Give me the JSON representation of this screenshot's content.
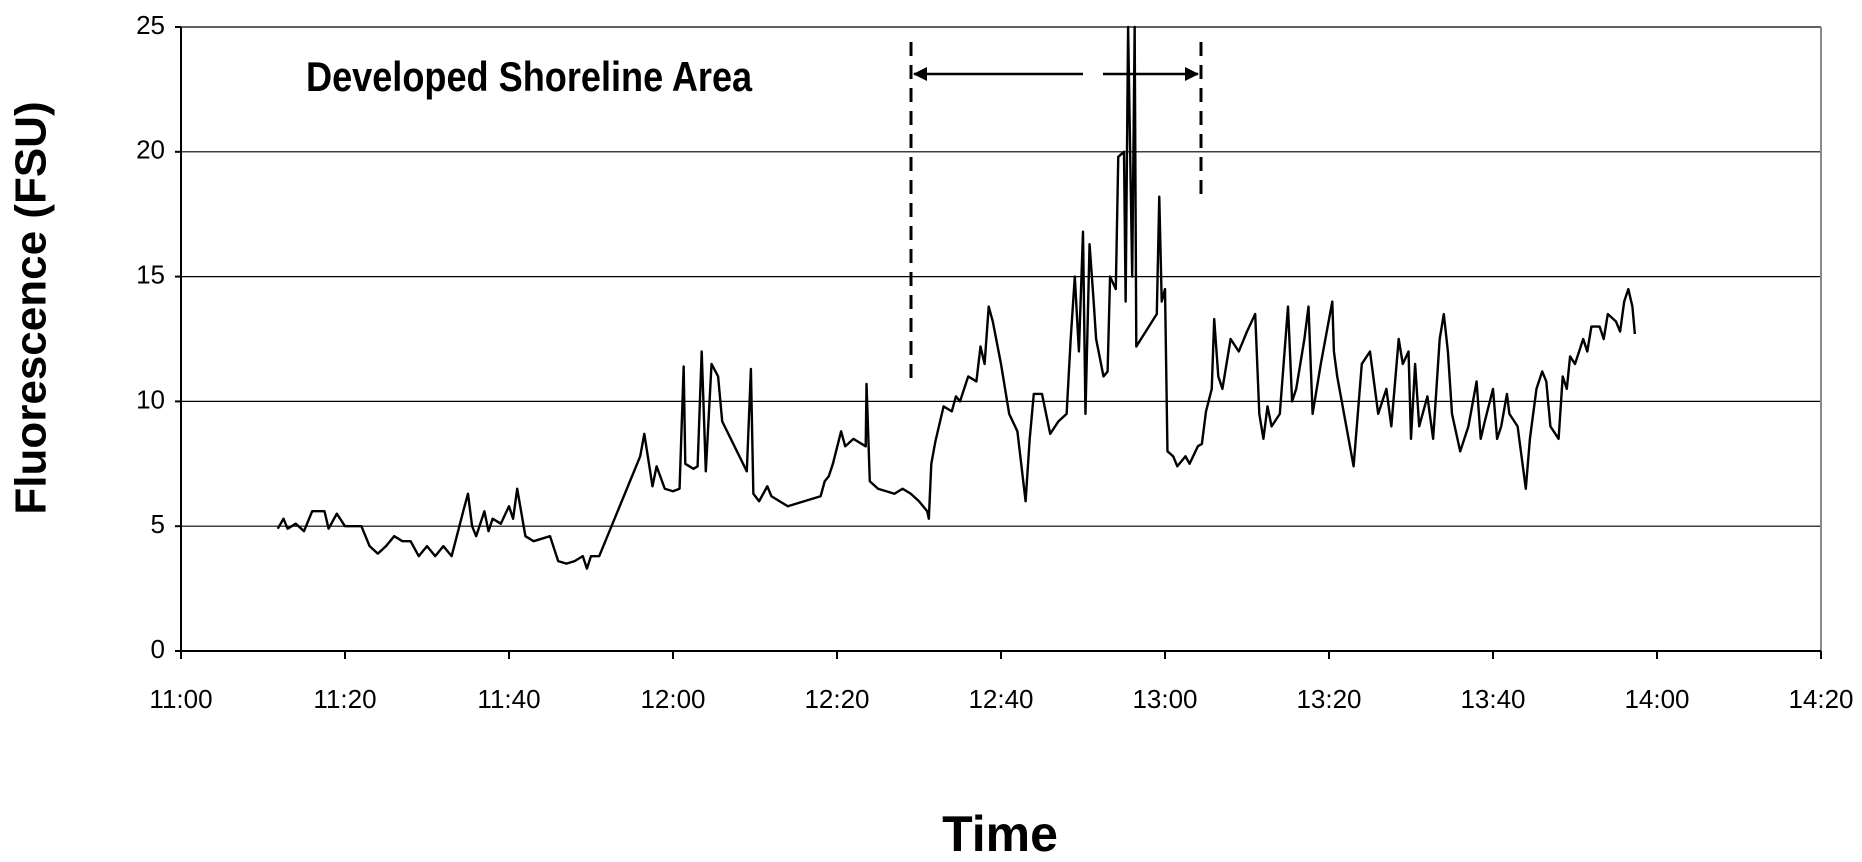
{
  "chart_data": {
    "type": "line",
    "annotation": "Developed Shoreline Area",
    "x_label": "Time",
    "y_label": "Fluorescence (FSU)",
    "color": "#000000",
    "grid": true,
    "xlim": [
      660,
      860
    ],
    "xticks": [
      {
        "value": 660,
        "label": "11:00"
      },
      {
        "value": 680,
        "label": "11:20"
      },
      {
        "value": 700,
        "label": "11:40"
      },
      {
        "value": 720,
        "label": "12:00"
      },
      {
        "value": 740,
        "label": "12:20"
      },
      {
        "value": 760,
        "label": "12:40"
      },
      {
        "value": 780,
        "label": "13:00"
      },
      {
        "value": 800,
        "label": "13:20"
      },
      {
        "value": 820,
        "label": "13:40"
      },
      {
        "value": 840,
        "label": "14:00"
      },
      {
        "value": 860,
        "label": "14:20"
      }
    ],
    "ylim": [
      0,
      25
    ],
    "yticks": [
      0,
      5,
      10,
      15,
      20,
      25
    ],
    "x": [
      671.8,
      672.5,
      673,
      674,
      675,
      676,
      677.5,
      678,
      679,
      680,
      682,
      683,
      684,
      685,
      686,
      687,
      688,
      689,
      690,
      691,
      692,
      693,
      694.5,
      695,
      695.5,
      696,
      697,
      697.5,
      698,
      699,
      700,
      700.5,
      701,
      702,
      703,
      705,
      706,
      707,
      708,
      709,
      709.5,
      710,
      711,
      716,
      716.5,
      717.5,
      718,
      719,
      720,
      720.8,
      721.3,
      721.5,
      722.5,
      723,
      723.5,
      724,
      724.7,
      725.5,
      726,
      729,
      729.5,
      729.8,
      730.5,
      731.5,
      732,
      733,
      734,
      738,
      738.5,
      739,
      739.5,
      740.5,
      741,
      742,
      743.5,
      743.6,
      744,
      745,
      746,
      747,
      748,
      749,
      750,
      751,
      751.2,
      751.5,
      752,
      753,
      754,
      754.5,
      755,
      756,
      757,
      757.5,
      758,
      758.5,
      759,
      760,
      760.5,
      761,
      762,
      763,
      763.5,
      764,
      765,
      766,
      767,
      768,
      768.5,
      769,
      769.5,
      770,
      770.3,
      770.8,
      771.3,
      771.6,
      772.5,
      773,
      773.3,
      774,
      774.3,
      775,
      775.2,
      775.5,
      776,
      776.3,
      776.5,
      779,
      779.3,
      779.6,
      780,
      780.3,
      781,
      781.5,
      782.5,
      783,
      784,
      784.5,
      785,
      785.7,
      786,
      786.5,
      787,
      788,
      789,
      790,
      791,
      791.5,
      792,
      792.5,
      793,
      794,
      795,
      795.5,
      796,
      797,
      797.5,
      798,
      799,
      800.4,
      800.6,
      801,
      803,
      804,
      805,
      806,
      807,
      807.6,
      808.5,
      809,
      809.7,
      810,
      810.5,
      811,
      812,
      812.7,
      813.5,
      814,
      814.5,
      815,
      816,
      817,
      818,
      818.5,
      819,
      820,
      820.5,
      821,
      821.7,
      822,
      823,
      824,
      824.5,
      825.3,
      826,
      826.5,
      827,
      828,
      828.5,
      829,
      829.4,
      830,
      831,
      831.5,
      832,
      833,
      833.5,
      834,
      835,
      835.5,
      836,
      836.5,
      837,
      837.3
    ],
    "values": [
      4.9,
      5.3,
      4.9,
      5.1,
      4.8,
      5.6,
      5.6,
      4.9,
      5.5,
      5.0,
      5.0,
      4.2,
      3.9,
      4.2,
      4.6,
      4.4,
      4.4,
      3.8,
      4.2,
      3.8,
      4.2,
      3.8,
      5.7,
      6.3,
      5.0,
      4.6,
      5.6,
      4.8,
      5.3,
      5.1,
      5.8,
      5.3,
      6.5,
      4.6,
      4.4,
      4.6,
      3.6,
      3.5,
      3.6,
      3.8,
      3.3,
      3.8,
      3.8,
      7.8,
      8.7,
      6.6,
      7.4,
      6.5,
      6.4,
      6.5,
      11.4,
      7.5,
      7.3,
      7.4,
      12.0,
      7.2,
      11.5,
      11.0,
      9.2,
      7.2,
      11.3,
      6.3,
      6.0,
      6.6,
      6.2,
      6.0,
      5.8,
      6.2,
      6.8,
      7.0,
      7.5,
      8.8,
      8.2,
      8.5,
      8.2,
      10.7,
      6.8,
      6.5,
      6.4,
      6.3,
      6.5,
      6.3,
      6.0,
      5.6,
      5.3,
      7.5,
      8.4,
      9.8,
      9.6,
      10.2,
      10.0,
      11.0,
      10.8,
      12.2,
      11.5,
      13.8,
      13.2,
      11.5,
      10.5,
      9.5,
      8.8,
      6.0,
      8.5,
      10.3,
      10.3,
      8.7,
      9.2,
      9.5,
      12.5,
      15.0,
      12.0,
      16.8,
      9.5,
      16.3,
      14.0,
      12.5,
      11.0,
      11.2,
      15.0,
      14.5,
      19.8,
      20.0,
      14.0,
      25.0,
      15.0,
      25.0,
      12.2,
      13.5,
      18.2,
      14.0,
      14.5,
      8.0,
      7.8,
      7.4,
      7.8,
      7.5,
      8.2,
      8.3,
      9.6,
      10.5,
      13.3,
      11.0,
      10.5,
      12.5,
      12.0,
      12.8,
      13.5,
      9.5,
      8.5,
      9.8,
      9.0,
      9.5,
      13.8,
      10.0,
      10.5,
      12.5,
      13.8,
      9.5,
      11.5,
      14.0,
      12.0,
      11.0,
      7.4,
      11.5,
      12.0,
      9.5,
      10.5,
      9.0,
      12.5,
      11.5,
      12.0,
      8.5,
      11.5,
      9.0,
      10.2,
      8.5,
      12.5,
      13.5,
      12.0,
      9.5,
      8.0,
      9.0,
      10.8,
      8.5,
      9.2,
      10.5,
      8.5,
      9.0,
      10.3,
      9.5,
      9.0,
      6.5,
      8.5,
      10.5,
      11.2,
      10.8,
      9.0,
      8.5,
      11.0,
      10.5,
      11.8,
      11.5,
      12.5,
      12.0,
      13.0,
      13.0,
      12.5,
      13.5,
      13.2,
      12.8,
      14.0,
      14.5,
      13.8,
      12.7
    ]
  }
}
